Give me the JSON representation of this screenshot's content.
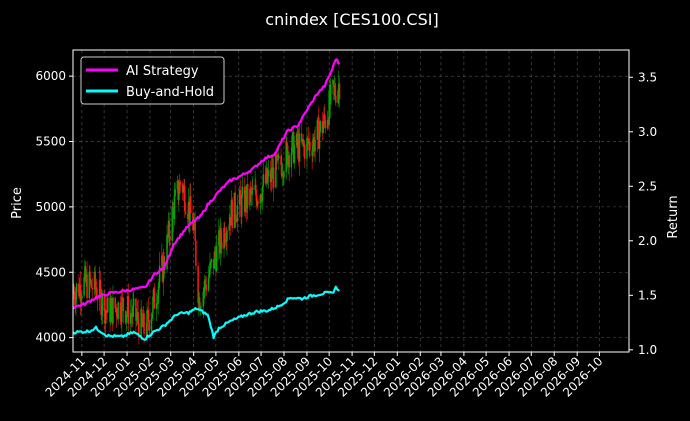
{
  "chart_data": {
    "type": "line",
    "title": "cnindex [CES100.CSI]",
    "ylabel_left": "Price",
    "ylabel_right": "Return",
    "grid": true,
    "legend_placement": "top-left",
    "ylim_left": [
      3890,
      6200
    ],
    "ylim_right": [
      0.98,
      3.75
    ],
    "xlim": [
      "2024-10-20",
      "2026-11-10"
    ],
    "left_ticks": [
      4000,
      4500,
      5000,
      5500,
      6000
    ],
    "right_ticks": [
      1.0,
      1.5,
      2.0,
      2.5,
      3.0,
      3.5
    ],
    "x_ticks": [
      {
        "date": "2024-11-01",
        "label": "2024-11"
      },
      {
        "date": "2024-12-01",
        "label": "2024-12"
      },
      {
        "date": "2025-01-01",
        "label": "2025-01"
      },
      {
        "date": "2025-02-01",
        "label": "2025-02"
      },
      {
        "date": "2025-03-01",
        "label": "2025-03"
      },
      {
        "date": "2025-04-01",
        "label": "2025-04"
      },
      {
        "date": "2025-05-01",
        "label": "2025-05"
      },
      {
        "date": "2025-06-01",
        "label": "2025-06"
      },
      {
        "date": "2025-07-01",
        "label": "2025-07"
      },
      {
        "date": "2025-08-01",
        "label": "2025-08"
      },
      {
        "date": "2025-09-01",
        "label": "2025-09"
      },
      {
        "date": "2025-10-01",
        "label": "2025-10"
      },
      {
        "date": "2025-11-01",
        "label": "2025-11"
      },
      {
        "date": "2025-12-01",
        "label": "2025-12"
      },
      {
        "date": "2026-01-01",
        "label": "2026-01"
      },
      {
        "date": "2026-02-01",
        "label": "2026-02"
      },
      {
        "date": "2026-03-01",
        "label": "2026-03"
      },
      {
        "date": "2026-04-01",
        "label": "2026-04"
      },
      {
        "date": "2026-05-01",
        "label": "2026-05"
      },
      {
        "date": "2026-06-01",
        "label": "2026-06"
      },
      {
        "date": "2026-07-01",
        "label": "2026-07"
      },
      {
        "date": "2026-08-01",
        "label": "2026-08"
      },
      {
        "date": "2026-09-01",
        "label": "2026-09"
      },
      {
        "date": "2026-10-01",
        "label": "2026-10"
      }
    ],
    "series": [
      {
        "name": "AI Strategy",
        "axis": "right",
        "color": "#ff00ff",
        "points": [
          [
            "2024-10-20",
            1.39
          ],
          [
            "2024-11-05",
            1.42
          ],
          [
            "2024-11-20",
            1.48
          ],
          [
            "2024-12-10",
            1.52
          ],
          [
            "2025-01-05",
            1.55
          ],
          [
            "2025-01-25",
            1.57
          ],
          [
            "2025-02-08",
            1.7
          ],
          [
            "2025-02-20",
            1.75
          ],
          [
            "2025-03-05",
            1.97
          ],
          [
            "2025-03-20",
            2.1
          ],
          [
            "2025-04-01",
            2.18
          ],
          [
            "2025-04-10",
            2.22
          ],
          [
            "2025-04-20",
            2.33
          ],
          [
            "2025-05-05",
            2.45
          ],
          [
            "2025-05-20",
            2.55
          ],
          [
            "2025-06-05",
            2.6
          ],
          [
            "2025-06-20",
            2.66
          ],
          [
            "2025-07-05",
            2.75
          ],
          [
            "2025-07-20",
            2.8
          ],
          [
            "2025-08-05",
            3.0
          ],
          [
            "2025-08-20",
            3.06
          ],
          [
            "2025-09-01",
            3.2
          ],
          [
            "2025-09-15",
            3.35
          ],
          [
            "2025-09-25",
            3.42
          ],
          [
            "2025-10-05",
            3.57
          ],
          [
            "2025-10-10",
            3.67
          ],
          [
            "2025-10-15",
            3.62
          ]
        ]
      },
      {
        "name": "Buy-and-Hold",
        "axis": "right",
        "color": "#00ffff",
        "points": [
          [
            "2024-10-20",
            1.16
          ],
          [
            "2024-11-10",
            1.17
          ],
          [
            "2024-11-20",
            1.2
          ],
          [
            "2024-12-05",
            1.13
          ],
          [
            "2024-12-25",
            1.12
          ],
          [
            "2025-01-10",
            1.16
          ],
          [
            "2025-01-25",
            1.1
          ],
          [
            "2025-02-05",
            1.16
          ],
          [
            "2025-02-20",
            1.22
          ],
          [
            "2025-03-10",
            1.33
          ],
          [
            "2025-03-25",
            1.34
          ],
          [
            "2025-04-05",
            1.38
          ],
          [
            "2025-04-20",
            1.32
          ],
          [
            "2025-04-28",
            1.12
          ],
          [
            "2025-05-05",
            1.2
          ],
          [
            "2025-05-20",
            1.26
          ],
          [
            "2025-06-10",
            1.32
          ],
          [
            "2025-06-25",
            1.35
          ],
          [
            "2025-07-10",
            1.36
          ],
          [
            "2025-07-25",
            1.4
          ],
          [
            "2025-08-10",
            1.48
          ],
          [
            "2025-08-25",
            1.47
          ],
          [
            "2025-09-10",
            1.5
          ],
          [
            "2025-09-25",
            1.52
          ],
          [
            "2025-10-05",
            1.52
          ],
          [
            "2025-10-10",
            1.57
          ],
          [
            "2025-10-15",
            1.55
          ]
        ]
      }
    ],
    "price_candles": {
      "axis": "left",
      "up_color": "#00aa00",
      "down_color": "#ff1a1a",
      "anchors": [
        [
          "2024-10-20",
          4350
        ],
        [
          "2024-11-05",
          4420
        ],
        [
          "2024-11-20",
          4380
        ],
        [
          "2024-12-05",
          4200
        ],
        [
          "2024-12-25",
          4250
        ],
        [
          "2025-01-10",
          4170
        ],
        [
          "2025-01-25",
          4050
        ],
        [
          "2025-02-05",
          4250
        ],
        [
          "2025-02-20",
          4580
        ],
        [
          "2025-03-05",
          5000
        ],
        [
          "2025-03-15",
          5200
        ],
        [
          "2025-04-01",
          4850
        ],
        [
          "2025-04-08",
          4300
        ],
        [
          "2025-04-20",
          4450
        ],
        [
          "2025-05-05",
          4700
        ],
        [
          "2025-05-20",
          4950
        ],
        [
          "2025-06-10",
          5050
        ],
        [
          "2025-06-25",
          5100
        ],
        [
          "2025-07-10",
          5200
        ],
        [
          "2025-07-25",
          5300
        ],
        [
          "2025-08-10",
          5450
        ],
        [
          "2025-08-25",
          5450
        ],
        [
          "2025-09-10",
          5500
        ],
        [
          "2025-09-25",
          5650
        ],
        [
          "2025-10-05",
          5850
        ],
        [
          "2025-10-15",
          5950
        ]
      ]
    }
  }
}
